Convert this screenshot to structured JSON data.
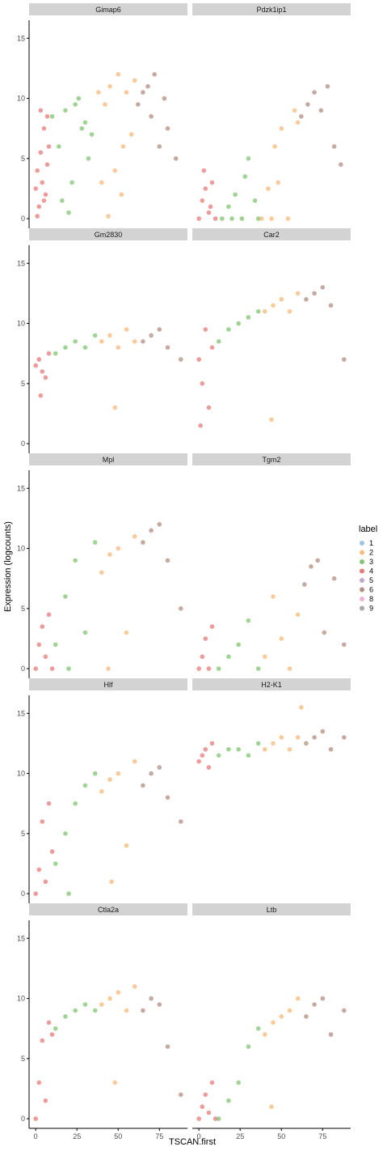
{
  "chart_data": {
    "type": "scatter",
    "xlabel": "TSCAN.first",
    "ylabel": "Expression (logcounts)",
    "xlim": [
      -4,
      92
    ],
    "ylim": [
      -0.8,
      16.5
    ],
    "x_ticks": [
      0,
      25,
      50,
      75
    ],
    "y_ticks": [
      0,
      5,
      10,
      15
    ],
    "facet_layout": {
      "rows": 5,
      "cols": 2
    },
    "legend": {
      "title": "label",
      "position": "right",
      "entries": [
        {
          "label": "1",
          "color": "#8fb8d9"
        },
        {
          "label": "2",
          "color": "#f7ae66"
        },
        {
          "label": "3",
          "color": "#6cbd5c"
        },
        {
          "label": "4",
          "color": "#e36565"
        },
        {
          "label": "5",
          "color": "#b39ac8"
        },
        {
          "label": "6",
          "color": "#a67c6e"
        },
        {
          "label": "8",
          "color": "#eba8cc"
        },
        {
          "label": "9",
          "color": "#9a9a9a"
        }
      ]
    },
    "point_alpha": 0.65,
    "panels": [
      {
        "gene": "Gimap6",
        "clusters": [
          {
            "label": "4",
            "x": [
              0,
              1,
              2,
              3,
              4,
              5,
              6,
              7,
              8,
              1,
              3,
              5,
              7
            ],
            "y": [
              2.5,
              4.0,
              1.0,
              5.5,
              3.0,
              7.5,
              2.0,
              8.5,
              6.0,
              0.2,
              9.0,
              1.5,
              4.5
            ]
          },
          {
            "label": "3",
            "x": [
              10,
              14,
              18,
              22,
              26,
              30,
              34,
              16,
              24,
              32,
              20,
              28
            ],
            "y": [
              8.5,
              6.0,
              9.0,
              3.0,
              10.0,
              8.0,
              7.0,
              1.5,
              9.5,
              5.0,
              0.5,
              7.5
            ]
          },
          {
            "label": "2",
            "x": [
              38,
              42,
              45,
              48,
              50,
              52,
              55,
              58,
              60,
              44,
              53,
              40
            ],
            "y": [
              10.5,
              9.5,
              11.0,
              4.0,
              12.0,
              2.0,
              10.5,
              7.0,
              11.5,
              0.2,
              6.0,
              3.0
            ]
          },
          {
            "label": "6",
            "x": [
              62,
              65,
              68,
              70,
              72,
              75,
              78,
              80,
              85
            ],
            "y": [
              9.5,
              10.5,
              11.0,
              8.5,
              12.0,
              6.0,
              10.0,
              7.5,
              5.0
            ]
          }
        ]
      },
      {
        "gene": "Pdzk1ip1",
        "clusters": [
          {
            "label": "4",
            "x": [
              0,
              2,
              4,
              6,
              8,
              10,
              3,
              7
            ],
            "y": [
              0,
              1.5,
              2.5,
              0.5,
              3.0,
              0,
              4.0,
              1.0
            ]
          },
          {
            "label": "3",
            "x": [
              14,
              18,
              22,
              26,
              30,
              34,
              20,
              28,
              36
            ],
            "y": [
              0,
              1.0,
              2.0,
              0,
              5.0,
              1.5,
              0,
              3.5,
              0
            ]
          },
          {
            "label": "2",
            "x": [
              38,
              42,
              46,
              50,
              54,
              58,
              60,
              48,
              44
            ],
            "y": [
              0,
              2.5,
              6.0,
              7.5,
              0,
              9.0,
              8.0,
              3.0,
              0
            ]
          },
          {
            "label": "6",
            "x": [
              62,
              66,
              70,
              74,
              78,
              82,
              86
            ],
            "y": [
              8.5,
              9.5,
              10.5,
              9.0,
              11.0,
              6.0,
              4.5
            ]
          }
        ]
      },
      {
        "gene": "Gm2830",
        "clusters": [
          {
            "label": "4",
            "x": [
              0,
              2,
              4,
              6,
              8,
              3
            ],
            "y": [
              6.5,
              7.0,
              6.0,
              5.5,
              7.5,
              4.0
            ]
          },
          {
            "label": "3",
            "x": [
              12,
              18,
              24,
              30,
              36
            ],
            "y": [
              7.5,
              8.0,
              8.5,
              8.0,
              9.0
            ]
          },
          {
            "label": "2",
            "x": [
              40,
              45,
              50,
              55,
              60,
              48
            ],
            "y": [
              8.5,
              9.0,
              8.0,
              9.5,
              8.5,
              3.0
            ]
          },
          {
            "label": "6",
            "x": [
              65,
              70,
              75,
              80,
              88
            ],
            "y": [
              8.5,
              9.0,
              9.5,
              8.0,
              7.0
            ]
          }
        ]
      },
      {
        "gene": "Car2",
        "clusters": [
          {
            "label": "4",
            "x": [
              0,
              2,
              4,
              6,
              8,
              1
            ],
            "y": [
              7.0,
              5.0,
              9.5,
              3.0,
              8.0,
              1.5
            ]
          },
          {
            "label": "3",
            "x": [
              12,
              18,
              24,
              30,
              36
            ],
            "y": [
              8.5,
              9.5,
              10.0,
              10.5,
              11.0
            ]
          },
          {
            "label": "2",
            "x": [
              40,
              45,
              50,
              55,
              60,
              44
            ],
            "y": [
              11.0,
              11.5,
              12.0,
              11.0,
              12.5,
              2.0
            ]
          },
          {
            "label": "6",
            "x": [
              65,
              70,
              75,
              80,
              88
            ],
            "y": [
              12.0,
              12.5,
              13.0,
              11.5,
              7.0
            ]
          }
        ]
      },
      {
        "gene": "Mpl",
        "clusters": [
          {
            "label": "4",
            "x": [
              0,
              2,
              4,
              6,
              8,
              10
            ],
            "y": [
              0,
              2.0,
              3.5,
              1.0,
              4.5,
              0
            ]
          },
          {
            "label": "3",
            "x": [
              12,
              18,
              24,
              30,
              36,
              20
            ],
            "y": [
              2.0,
              6.0,
              9.0,
              3.0,
              10.5,
              0
            ]
          },
          {
            "label": "2",
            "x": [
              40,
              45,
              50,
              55,
              60,
              44
            ],
            "y": [
              8.0,
              9.5,
              10.0,
              3.0,
              11.0,
              0
            ]
          },
          {
            "label": "6",
            "x": [
              65,
              70,
              75,
              80,
              88
            ],
            "y": [
              10.5,
              11.5,
              12.0,
              9.0,
              5.0
            ]
          }
        ]
      },
      {
        "gene": "Tgm2",
        "clusters": [
          {
            "label": "4",
            "x": [
              0,
              2,
              4,
              6,
              8
            ],
            "y": [
              0,
              1.0,
              2.5,
              0,
              3.5
            ]
          },
          {
            "label": "3",
            "x": [
              12,
              18,
              24,
              30,
              36
            ],
            "y": [
              0,
              1.0,
              2.0,
              4.0,
              0
            ]
          },
          {
            "label": "2",
            "x": [
              40,
              45,
              50,
              55,
              60
            ],
            "y": [
              1.0,
              6.0,
              2.5,
              0,
              4.5
            ]
          },
          {
            "label": "6",
            "x": [
              64,
              68,
              72,
              76,
              82,
              88
            ],
            "y": [
              7.0,
              8.5,
              9.0,
              3.0,
              7.5,
              2.0
            ]
          }
        ]
      },
      {
        "gene": "Hlf",
        "clusters": [
          {
            "label": "4",
            "x": [
              0,
              2,
              4,
              6,
              8,
              10
            ],
            "y": [
              0,
              2.0,
              6.0,
              1.0,
              7.5,
              3.5
            ]
          },
          {
            "label": "3",
            "x": [
              12,
              18,
              24,
              30,
              36,
              20
            ],
            "y": [
              2.5,
              5.0,
              7.5,
              9.0,
              10.0,
              0
            ]
          },
          {
            "label": "2",
            "x": [
              40,
              45,
              50,
              55,
              60,
              46
            ],
            "y": [
              8.5,
              9.5,
              10.0,
              4.0,
              11.0,
              1.0
            ]
          },
          {
            "label": "6",
            "x": [
              65,
              70,
              75,
              80,
              88
            ],
            "y": [
              9.0,
              10.0,
              10.5,
              8.0,
              6.0
            ]
          }
        ]
      },
      {
        "gene": "H2-K1",
        "clusters": [
          {
            "label": "4",
            "x": [
              0,
              2,
              4,
              6,
              8
            ],
            "y": [
              11.0,
              11.5,
              12.0,
              10.5,
              12.5
            ]
          },
          {
            "label": "3",
            "x": [
              12,
              18,
              24,
              30,
              36
            ],
            "y": [
              11.5,
              12.0,
              12.0,
              11.5,
              12.5
            ]
          },
          {
            "label": "2",
            "x": [
              40,
              45,
              50,
              55,
              60,
              62
            ],
            "y": [
              12.0,
              12.5,
              13.0,
              12.0,
              13.0,
              15.5
            ]
          },
          {
            "label": "6",
            "x": [
              65,
              70,
              75,
              80,
              88
            ],
            "y": [
              12.5,
              13.0,
              13.5,
              12.0,
              13.0
            ]
          }
        ]
      },
      {
        "gene": "Ctla2a",
        "clusters": [
          {
            "label": "4",
            "x": [
              0,
              2,
              4,
              6,
              8,
              10
            ],
            "y": [
              0,
              3.0,
              6.5,
              1.5,
              8.0,
              7.0
            ]
          },
          {
            "label": "3",
            "x": [
              12,
              18,
              24,
              30,
              36
            ],
            "y": [
              7.5,
              8.5,
              9.0,
              9.5,
              9.0
            ]
          },
          {
            "label": "2",
            "x": [
              40,
              45,
              50,
              55,
              60,
              48
            ],
            "y": [
              9.5,
              10.0,
              10.5,
              9.0,
              11.0,
              3.0
            ]
          },
          {
            "label": "6",
            "x": [
              65,
              70,
              75,
              80,
              88
            ],
            "y": [
              9.0,
              10.0,
              9.5,
              6.0,
              2.0
            ]
          }
        ]
      },
      {
        "gene": "Ltb",
        "clusters": [
          {
            "label": "4",
            "x": [
              0,
              2,
              4,
              6,
              8,
              10
            ],
            "y": [
              0,
              1.0,
              2.0,
              0.5,
              3.0,
              0
            ]
          },
          {
            "label": "3",
            "x": [
              12,
              18,
              24,
              30,
              36
            ],
            "y": [
              0,
              1.5,
              3.0,
              6.0,
              7.5
            ]
          },
          {
            "label": "2",
            "x": [
              40,
              45,
              50,
              55,
              60,
              44
            ],
            "y": [
              7.0,
              8.0,
              8.5,
              9.0,
              10.0,
              1.0
            ]
          },
          {
            "label": "6",
            "x": [
              65,
              70,
              75,
              80,
              88
            ],
            "y": [
              8.5,
              9.5,
              10.0,
              7.0,
              9.0
            ]
          }
        ]
      }
    ]
  }
}
